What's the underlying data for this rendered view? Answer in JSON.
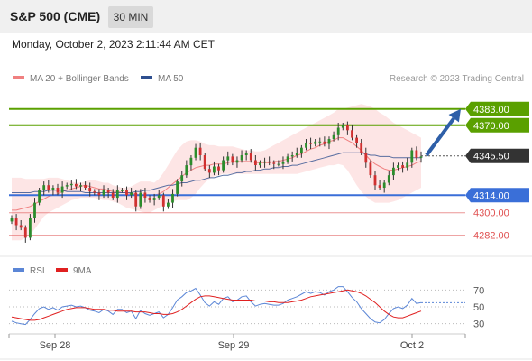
{
  "header": {
    "title": "S&P 500 (CME)",
    "timeframe": "30 MIN"
  },
  "date_line": "Monday, October 2, 2023 2:11:44 AM CET",
  "legend": [
    {
      "label": "MA 20 + Bollinger Bands",
      "color": "#f08080"
    },
    {
      "label": "MA 50",
      "color": "#2e4f8f"
    }
  ],
  "credit": "Research © 2023 Trading Central",
  "colors": {
    "resistance": "#5aa000",
    "support": "#3a6fd8",
    "minor": "#e05050",
    "arrow": "#2e5fa8",
    "last": "#333333",
    "bull": "#2c8c2c",
    "bear": "#d03030"
  },
  "chart_data": [
    {
      "type": "candlestick",
      "ylim": [
        4268,
        4398
      ],
      "x_ticks": [
        "Sep 28",
        "Sep 29",
        "Oct 2"
      ],
      "last_price": {
        "value": 4345.5,
        "label": "4345.50"
      },
      "levels": [
        {
          "value": 4383.0,
          "label": "4383.00",
          "kind": "resistance"
        },
        {
          "value": 4370.0,
          "label": "4370.00",
          "kind": "resistance"
        },
        {
          "value": 4314.0,
          "label": "4314.00",
          "kind": "support"
        },
        {
          "value": 4300.0,
          "label": "4300.00",
          "kind": "minor"
        },
        {
          "value": 4282.0,
          "label": "4282.00",
          "kind": "minor"
        }
      ],
      "arrow": {
        "from": 4346,
        "to": 4383
      },
      "close": [
        4296,
        4290,
        4288,
        4280,
        4296,
        4308,
        4318,
        4322,
        4318,
        4320,
        4316,
        4321,
        4322,
        4323,
        4321,
        4322,
        4320,
        4317,
        4316,
        4314,
        4318,
        4316,
        4312,
        4318,
        4318,
        4314,
        4316,
        4305,
        4316,
        4312,
        4310,
        4312,
        4314,
        4305,
        4308,
        4315,
        4325,
        4330,
        4338,
        4344,
        4352,
        4346,
        4335,
        4332,
        4337,
        4334,
        4342,
        4345,
        4340,
        4342,
        4346,
        4348,
        4342,
        4338,
        4340,
        4341,
        4340,
        4339,
        4339,
        4341,
        4345,
        4346,
        4348,
        4352,
        4356,
        4355,
        4357,
        4357,
        4355,
        4359,
        4362,
        4368,
        4370,
        4366,
        4360,
        4356,
        4348,
        4340,
        4330,
        4322,
        4320,
        4324,
        4330,
        4336,
        4338,
        4336,
        4340,
        4350,
        4344,
        4345
      ],
      "ma20": [
        4302,
        4302,
        4303,
        4304,
        4305,
        4307,
        4309,
        4311,
        4313,
        4314,
        4315,
        4317,
        4318,
        4319,
        4320,
        4321,
        4322,
        4321,
        4320,
        4319,
        4319,
        4318,
        4317,
        4317,
        4316,
        4316,
        4315,
        4315,
        4314,
        4314,
        4314,
        4314,
        4315,
        4317,
        4320,
        4323,
        4326,
        4329,
        4332,
        4334,
        4336,
        4337,
        4338,
        4338,
        4339,
        4339,
        4339,
        4340,
        4341,
        4341,
        4341,
        4341,
        4341,
        4340,
        4340,
        4340,
        4340,
        4341,
        4341,
        4342,
        4343,
        4344,
        4346,
        4347,
        4349,
        4351,
        4352,
        4354,
        4355,
        4357,
        4358,
        4360,
        4360,
        4358,
        4356,
        4353,
        4350,
        4346,
        4342,
        4339,
        4337,
        4335,
        4334,
        4334,
        4335,
        4336,
        4337,
        4338,
        4340,
        4341
      ],
      "bb_upper": [
        4328,
        4328,
        4328,
        4327,
        4327,
        4327,
        4327,
        4327,
        4328,
        4328,
        4328,
        4327,
        4326,
        4325,
        4324,
        4324,
        4325,
        4326,
        4326,
        4325,
        4324,
        4324,
        4322,
        4321,
        4320,
        4320,
        4321,
        4323,
        4325,
        4325,
        4325,
        4324,
        4327,
        4332,
        4338,
        4344,
        4350,
        4354,
        4357,
        4358,
        4358,
        4357,
        4355,
        4354,
        4354,
        4353,
        4353,
        4353,
        4353,
        4352,
        4351,
        4350,
        4350,
        4349,
        4349,
        4350,
        4352,
        4354,
        4356,
        4358,
        4360,
        4362,
        4364,
        4366,
        4368,
        4370,
        4372,
        4374,
        4376,
        4378,
        4380,
        4383,
        4383,
        4384,
        4385,
        4386,
        4387,
        4386,
        4385,
        4383,
        4380,
        4378,
        4375,
        4372,
        4370,
        4368,
        4366,
        4364,
        4362,
        4360
      ],
      "bb_lower": [
        4278,
        4278,
        4278,
        4280,
        4282,
        4287,
        4292,
        4297,
        4300,
        4302,
        4304,
        4306,
        4308,
        4310,
        4311,
        4312,
        4312,
        4312,
        4312,
        4311,
        4310,
        4310,
        4309,
        4308,
        4306,
        4304,
        4303,
        4302,
        4301,
        4300,
        4300,
        4302,
        4304,
        4306,
        4308,
        4309,
        4310,
        4310,
        4310,
        4312,
        4315,
        4320,
        4324,
        4327,
        4329,
        4330,
        4331,
        4331,
        4331,
        4331,
        4331,
        4331,
        4331,
        4331,
        4331,
        4331,
        4331,
        4331,
        4331,
        4331,
        4331,
        4331,
        4331,
        4332,
        4333,
        4334,
        4335,
        4336,
        4337,
        4338,
        4338,
        4339,
        4338,
        4334,
        4328,
        4322,
        4317,
        4313,
        4310,
        4308,
        4308,
        4308,
        4308,
        4309,
        4310,
        4312,
        4314,
        4316,
        4318,
        4320
      ],
      "ma50": [
        4316,
        4316,
        4316,
        4316,
        4316,
        4317,
        4317,
        4317,
        4318,
        4318,
        4318,
        4318,
        4317,
        4317,
        4317,
        4317,
        4316,
        4316,
        4316,
        4316,
        4316,
        4316,
        4316,
        4316,
        4316,
        4316,
        4316,
        4317,
        4317,
        4318,
        4318,
        4319,
        4320,
        4321,
        4322,
        4322,
        4323,
        4324,
        4324,
        4325,
        4326,
        4326,
        4327,
        4328,
        4328,
        4329,
        4330,
        4330,
        4331,
        4332,
        4332,
        4333,
        4333,
        4334,
        4334,
        4335,
        4335,
        4336,
        4336,
        4337,
        4337,
        4338,
        4338,
        4339,
        4340,
        4341,
        4342,
        4343,
        4344,
        4345,
        4346,
        4347,
        4348,
        4348,
        4348,
        4348,
        4348,
        4347,
        4346,
        4346,
        4345,
        4345,
        4345,
        4344,
        4344,
        4344,
        4344,
        4344,
        4344,
        4344
      ]
    },
    {
      "type": "line",
      "ylim": [
        20,
        80
      ],
      "y_ticks": [
        "70",
        "50",
        "30"
      ],
      "series": [
        {
          "name": "RSI",
          "color": "#5b86d6",
          "values": [
            33,
            31,
            30,
            29,
            35,
            42,
            48,
            50,
            47,
            49,
            46,
            50,
            51,
            52,
            50,
            51,
            49,
            46,
            45,
            43,
            47,
            45,
            41,
            47,
            47,
            43,
            45,
            36,
            46,
            42,
            40,
            42,
            44,
            37,
            41,
            49,
            58,
            62,
            67,
            69,
            72,
            64,
            55,
            51,
            56,
            53,
            60,
            62,
            56,
            58,
            62,
            63,
            56,
            51,
            53,
            54,
            53,
            52,
            52,
            54,
            58,
            60,
            62,
            65,
            68,
            66,
            68,
            67,
            64,
            68,
            70,
            74,
            74,
            68,
            61,
            56,
            48,
            42,
            36,
            32,
            31,
            35,
            42,
            48,
            50,
            48,
            52,
            60,
            54,
            55
          ]
        },
        {
          "name": "9MA",
          "color": "#e02020",
          "values": [
            38,
            37,
            36,
            35,
            34,
            34,
            35,
            37,
            39,
            41,
            43,
            45,
            47,
            48,
            49,
            49,
            49,
            48,
            47,
            47,
            47,
            46,
            46,
            45,
            45,
            45,
            45,
            44,
            44,
            44,
            43,
            42,
            42,
            41,
            41,
            42,
            44,
            47,
            51,
            55,
            59,
            62,
            63,
            63,
            62,
            61,
            60,
            59,
            58,
            58,
            58,
            58,
            58,
            57,
            57,
            57,
            56,
            56,
            55,
            55,
            55,
            56,
            57,
            58,
            60,
            62,
            63,
            64,
            65,
            66,
            67,
            68,
            69,
            70,
            69,
            68,
            66,
            63,
            59,
            55,
            50,
            45,
            41,
            38,
            37,
            37,
            39,
            41,
            43,
            45
          ]
        }
      ]
    }
  ]
}
